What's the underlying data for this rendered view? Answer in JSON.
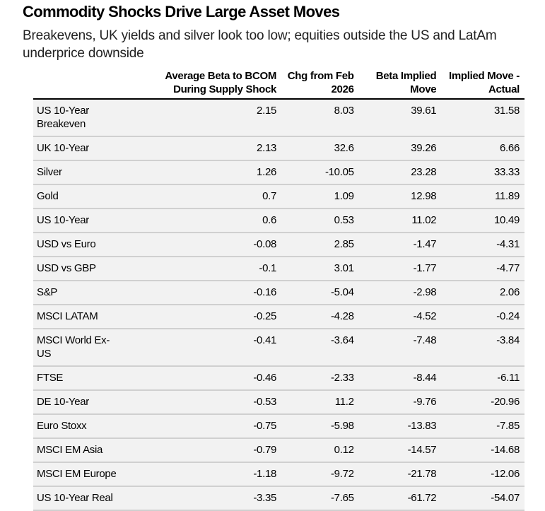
{
  "header": {
    "title": "Commodity Shocks Drive Large Asset Moves",
    "subtitle": "Breakevens, UK yields and silver look too low; equities outside the US and LatAm underprice downside"
  },
  "table": {
    "columns": [
      "",
      "Average Beta to BCOM During Supply Shock",
      "Chg from Feb 2026",
      "Beta Implied Move",
      "Implied Move - Actual"
    ],
    "rows": [
      {
        "name": "US 10-Year Breakeven",
        "beta": "2.15",
        "chg": "8.03",
        "implied": "39.61",
        "diff": "31.58"
      },
      {
        "name": "UK 10-Year",
        "beta": "2.13",
        "chg": "32.6",
        "implied": "39.26",
        "diff": "6.66"
      },
      {
        "name": "Silver",
        "beta": "1.26",
        "chg": "-10.05",
        "implied": "23.28",
        "diff": "33.33"
      },
      {
        "name": "Gold",
        "beta": "0.7",
        "chg": "1.09",
        "implied": "12.98",
        "diff": "11.89"
      },
      {
        "name": "US 10-Year",
        "beta": "0.6",
        "chg": "0.53",
        "implied": "11.02",
        "diff": "10.49"
      },
      {
        "name": "USD vs Euro",
        "beta": "-0.08",
        "chg": "2.85",
        "implied": "-1.47",
        "diff": "-4.31"
      },
      {
        "name": "USD vs GBP",
        "beta": "-0.1",
        "chg": "3.01",
        "implied": "-1.77",
        "diff": "-4.77"
      },
      {
        "name": "S&P",
        "beta": "-0.16",
        "chg": "-5.04",
        "implied": "-2.98",
        "diff": "2.06"
      },
      {
        "name": "MSCI LATAM",
        "beta": "-0.25",
        "chg": "-4.28",
        "implied": "-4.52",
        "diff": "-0.24"
      },
      {
        "name": "MSCI World Ex-US",
        "beta": "-0.41",
        "chg": "-3.64",
        "implied": "-7.48",
        "diff": "-3.84"
      },
      {
        "name": "FTSE",
        "beta": "-0.46",
        "chg": "-2.33",
        "implied": "-8.44",
        "diff": "-6.11"
      },
      {
        "name": "DE 10-Year",
        "beta": "-0.53",
        "chg": "11.2",
        "implied": "-9.76",
        "diff": "-20.96"
      },
      {
        "name": "Euro Stoxx",
        "beta": "-0.75",
        "chg": "-5.98",
        "implied": "-13.83",
        "diff": "-7.85"
      },
      {
        "name": "MSCI EM Asia",
        "beta": "-0.79",
        "chg": "0.12",
        "implied": "-14.57",
        "diff": "-14.68"
      },
      {
        "name": "MSCI EM Europe",
        "beta": "-1.18",
        "chg": "-9.72",
        "implied": "-21.78",
        "diff": "-12.06"
      },
      {
        "name": "US 10-Year Real",
        "beta": "-3.35",
        "chg": "-7.65",
        "implied": "-61.72",
        "diff": "-54.07"
      }
    ]
  }
}
